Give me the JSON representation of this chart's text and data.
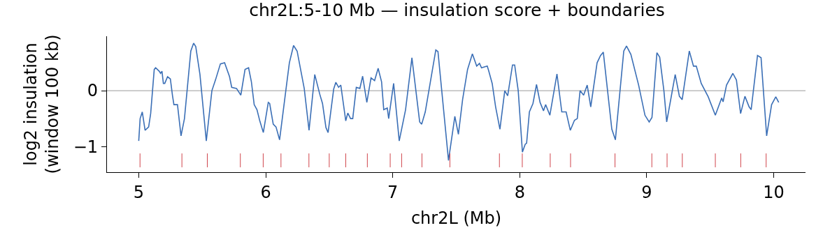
{
  "chart_data": {
    "type": "line",
    "title": "chr2L:5-10 Mb — insulation score + boundaries",
    "xlabel": "chr2L (Mb)",
    "ylabel": "log2 insulation\n(window 100 kb)",
    "xlim": [
      4.75,
      10.25
    ],
    "xticks": [
      5,
      6,
      7,
      8,
      9,
      10
    ],
    "ylim": [
      -1.46,
      0.975
    ],
    "yticks": [
      {
        "value": -1,
        "label": "−1"
      },
      0
    ],
    "grid": false,
    "marker": "none",
    "line_style": "solid",
    "series": [
      {
        "color": "#3b6fb6",
        "x": [
          5.0,
          5.011,
          5.028,
          5.05,
          5.078,
          5.094,
          5.122,
          5.133,
          5.161,
          5.172,
          5.183,
          5.194,
          5.205,
          5.227,
          5.249,
          5.266,
          5.277,
          5.305,
          5.333,
          5.36,
          5.41,
          5.432,
          5.449,
          5.482,
          5.532,
          5.576,
          5.604,
          5.643,
          5.676,
          5.715,
          5.732,
          5.77,
          5.804,
          5.837,
          5.865,
          5.887,
          5.909,
          5.931,
          5.953,
          5.981,
          6.02,
          6.031,
          6.059,
          6.081,
          6.109,
          6.158,
          6.186,
          6.219,
          6.247,
          6.303,
          6.341,
          6.386,
          6.425,
          6.447,
          6.474,
          6.491,
          6.535,
          6.552,
          6.574,
          6.591,
          6.63,
          6.646,
          6.668,
          6.685,
          6.713,
          6.741,
          6.763,
          6.796,
          6.829,
          6.857,
          6.885,
          6.912,
          6.929,
          6.957,
          6.968,
          7.007,
          7.051,
          7.101,
          7.151,
          7.212,
          7.228,
          7.256,
          7.339,
          7.356,
          7.439,
          7.489,
          7.517,
          7.55,
          7.589,
          7.627,
          7.661,
          7.683,
          7.699,
          7.744,
          7.755,
          7.783,
          7.81,
          7.844,
          7.882,
          7.905,
          7.943,
          7.96,
          7.988,
          8.021,
          8.043,
          8.054,
          8.076,
          8.104,
          8.132,
          8.16,
          8.187,
          8.204,
          8.237,
          8.293,
          8.331,
          8.365,
          8.398,
          8.431,
          8.453,
          8.475,
          8.503,
          8.531,
          8.559,
          8.609,
          8.636,
          8.658,
          8.725,
          8.753,
          8.819,
          8.841,
          8.875,
          8.936,
          8.986,
          9.019,
          9.041,
          9.08,
          9.102,
          9.135,
          9.157,
          9.191,
          9.224,
          9.257,
          9.279,
          9.335,
          9.368,
          9.39,
          9.429,
          9.484,
          9.54,
          9.59,
          9.601,
          9.628,
          9.678,
          9.706,
          9.739,
          9.773,
          9.806,
          9.822,
          9.872,
          9.9,
          9.944,
          9.983,
          10.016,
          10.039
        ],
        "values": [
          -0.9,
          -0.5,
          -0.38,
          -0.71,
          -0.65,
          -0.41,
          0.38,
          0.41,
          0.35,
          0.31,
          0.35,
          0.13,
          0.13,
          0.25,
          0.21,
          -0.09,
          -0.25,
          -0.25,
          -0.81,
          -0.5,
          0.71,
          0.85,
          0.79,
          0.29,
          -0.9,
          0.0,
          0.19,
          0.48,
          0.5,
          0.25,
          0.06,
          0.04,
          -0.08,
          0.38,
          0.41,
          0.16,
          -0.25,
          -0.34,
          -0.54,
          -0.75,
          -0.21,
          -0.23,
          -0.6,
          -0.65,
          -0.88,
          0.0,
          0.5,
          0.81,
          0.71,
          0.04,
          -0.71,
          0.29,
          -0.06,
          -0.23,
          -0.66,
          -0.75,
          0.03,
          0.15,
          0.06,
          0.1,
          -0.54,
          -0.4,
          -0.5,
          -0.5,
          0.06,
          0.04,
          0.26,
          -0.21,
          0.23,
          0.18,
          0.4,
          0.16,
          -0.34,
          -0.31,
          -0.5,
          0.13,
          -0.9,
          -0.34,
          0.59,
          -0.56,
          -0.6,
          -0.38,
          0.73,
          0.7,
          -1.25,
          -0.46,
          -0.78,
          -0.16,
          0.38,
          0.66,
          0.44,
          0.49,
          0.41,
          0.44,
          0.36,
          0.13,
          -0.29,
          -0.69,
          0.0,
          -0.09,
          0.46,
          0.46,
          0.0,
          -1.1,
          -0.96,
          -0.94,
          -0.38,
          -0.23,
          0.11,
          -0.21,
          -0.36,
          -0.25,
          -0.44,
          0.3,
          -0.38,
          -0.38,
          -0.71,
          -0.53,
          -0.5,
          0.0,
          -0.08,
          0.1,
          -0.29,
          0.5,
          0.63,
          0.69,
          -0.69,
          -0.88,
          0.71,
          0.8,
          0.65,
          0.1,
          -0.44,
          -0.56,
          -0.48,
          0.68,
          0.6,
          0.0,
          -0.56,
          -0.13,
          0.29,
          -0.1,
          -0.16,
          0.71,
          0.44,
          0.44,
          0.13,
          -0.11,
          -0.44,
          -0.13,
          -0.2,
          0.1,
          0.31,
          0.19,
          -0.41,
          -0.1,
          -0.29,
          -0.34,
          0.63,
          0.59,
          -0.81,
          -0.25,
          -0.11,
          -0.21
        ]
      }
    ],
    "ref_lines": [
      {
        "axis": "y",
        "value": 0,
        "color": "#808080"
      },
      {
        "axis": "x",
        "value": 5.01,
        "color": "#d0454c"
      },
      {
        "axis": "x",
        "value": 5.34,
        "color": "#d0454c"
      },
      {
        "axis": "x",
        "value": 5.54,
        "color": "#d0454c"
      },
      {
        "axis": "x",
        "value": 5.8,
        "color": "#d0454c"
      },
      {
        "axis": "x",
        "value": 5.98,
        "color": "#d0454c"
      },
      {
        "axis": "x",
        "value": 6.12,
        "color": "#d0454c"
      },
      {
        "axis": "x",
        "value": 6.34,
        "color": "#d0454c"
      },
      {
        "axis": "x",
        "value": 6.5,
        "color": "#d0454c"
      },
      {
        "axis": "x",
        "value": 6.63,
        "color": "#d0454c"
      },
      {
        "axis": "x",
        "value": 6.8,
        "color": "#d0454c"
      },
      {
        "axis": "x",
        "value": 6.98,
        "color": "#d0454c"
      },
      {
        "axis": "x",
        "value": 7.07,
        "color": "#d0454c"
      },
      {
        "axis": "x",
        "value": 7.23,
        "color": "#d0454c"
      },
      {
        "axis": "x",
        "value": 7.45,
        "color": "#d0454c"
      },
      {
        "axis": "x",
        "value": 7.84,
        "color": "#d0454c"
      },
      {
        "axis": "x",
        "value": 8.02,
        "color": "#d0454c"
      },
      {
        "axis": "x",
        "value": 8.24,
        "color": "#d0454c"
      },
      {
        "axis": "x",
        "value": 8.4,
        "color": "#d0454c"
      },
      {
        "axis": "x",
        "value": 8.75,
        "color": "#d0454c"
      },
      {
        "axis": "x",
        "value": 9.04,
        "color": "#d0454c"
      },
      {
        "axis": "x",
        "value": 9.16,
        "color": "#d0454c"
      },
      {
        "axis": "x",
        "value": 9.28,
        "color": "#d0454c"
      },
      {
        "axis": "x",
        "value": 9.54,
        "color": "#d0454c"
      },
      {
        "axis": "x",
        "value": 9.74,
        "color": "#d0454c"
      },
      {
        "axis": "x",
        "value": 9.94,
        "color": "#d0454c"
      }
    ]
  }
}
